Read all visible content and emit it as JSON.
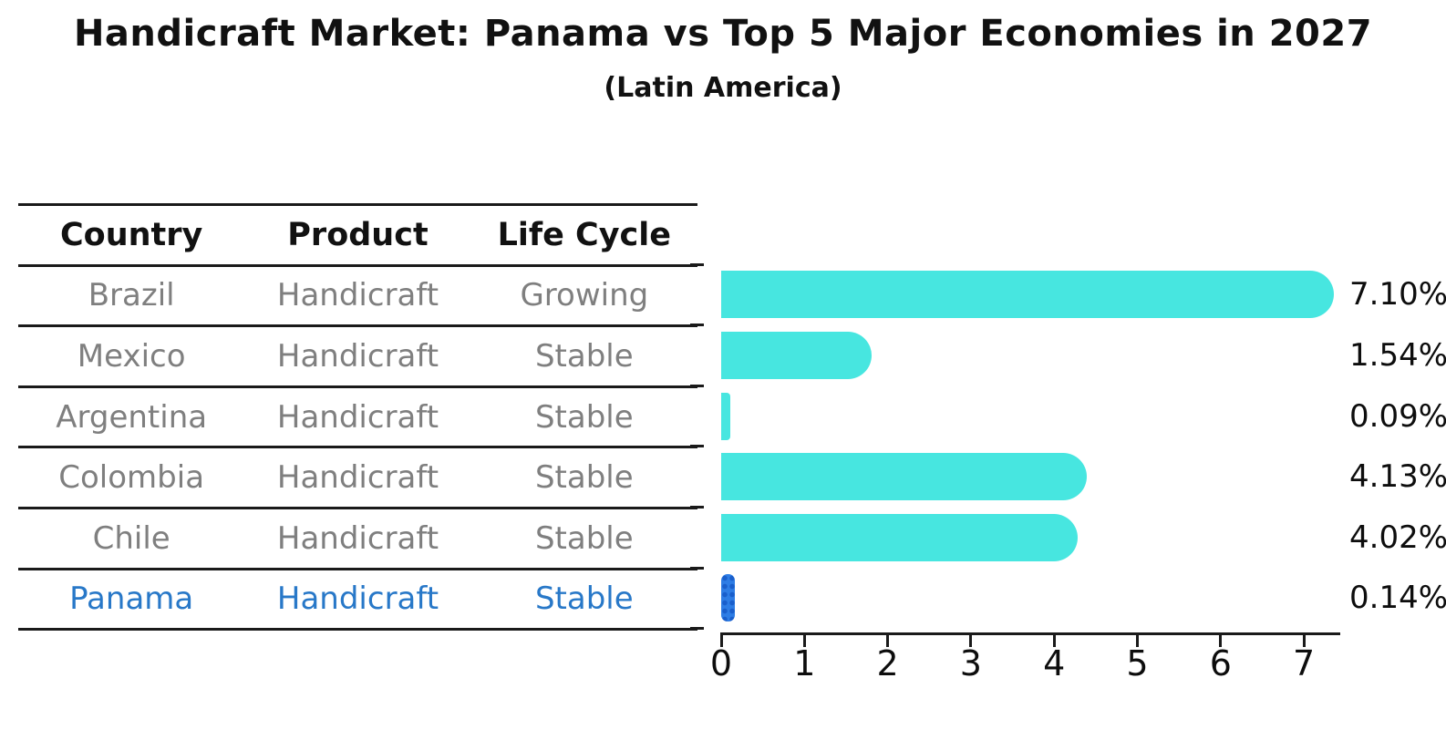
{
  "title": "Handicraft Market: Panama vs Top 5 Major Economies in 2027",
  "subtitle": "(Latin America)",
  "table": {
    "columns": [
      "Country",
      "Product",
      "Life Cycle"
    ],
    "rows": [
      {
        "country": "Brazil",
        "product": "Handicraft",
        "life_cycle": "Growing",
        "highlight": false
      },
      {
        "country": "Mexico",
        "product": "Handicraft",
        "life_cycle": "Stable",
        "highlight": false
      },
      {
        "country": "Argentina",
        "product": "Handicraft",
        "life_cycle": "Stable",
        "highlight": false
      },
      {
        "country": "Colombia",
        "product": "Handicraft",
        "life_cycle": "Stable",
        "highlight": false
      },
      {
        "country": "Chile",
        "product": "Handicraft",
        "life_cycle": "Stable",
        "highlight": true
      }
    ],
    "highlight_row": {
      "country": "Panama",
      "product": "Handicraft",
      "life_cycle": "Stable"
    }
  },
  "chart_data": {
    "type": "bar",
    "orientation": "horizontal",
    "title": "Handicraft Market: Panama vs Top 5 Major Economies in 2027",
    "subtitle": "(Latin America)",
    "categories": [
      "Brazil",
      "Mexico",
      "Argentina",
      "Colombia",
      "Chile",
      "Panama"
    ],
    "values": [
      7.1,
      1.54,
      0.09,
      4.13,
      4.02,
      0.14
    ],
    "value_labels": [
      "7.10%",
      "1.54%",
      "0.09%",
      "4.13%",
      "4.02%",
      "0.14%"
    ],
    "highlight_category": "Panama",
    "x_ticks": [
      "0",
      "1",
      "2",
      "3",
      "4",
      "5",
      "6",
      "7"
    ],
    "xlim": [
      0,
      7.4
    ],
    "grid": false,
    "legend": false,
    "colors": {
      "bar": "#47e6e0",
      "highlight_bar": "#2e7de5",
      "highlight_bar_dot": "#1a5fcc",
      "highlight_text": "#2878c8",
      "table_text": "#7f7f7f",
      "heading_text": "#111111"
    }
  }
}
